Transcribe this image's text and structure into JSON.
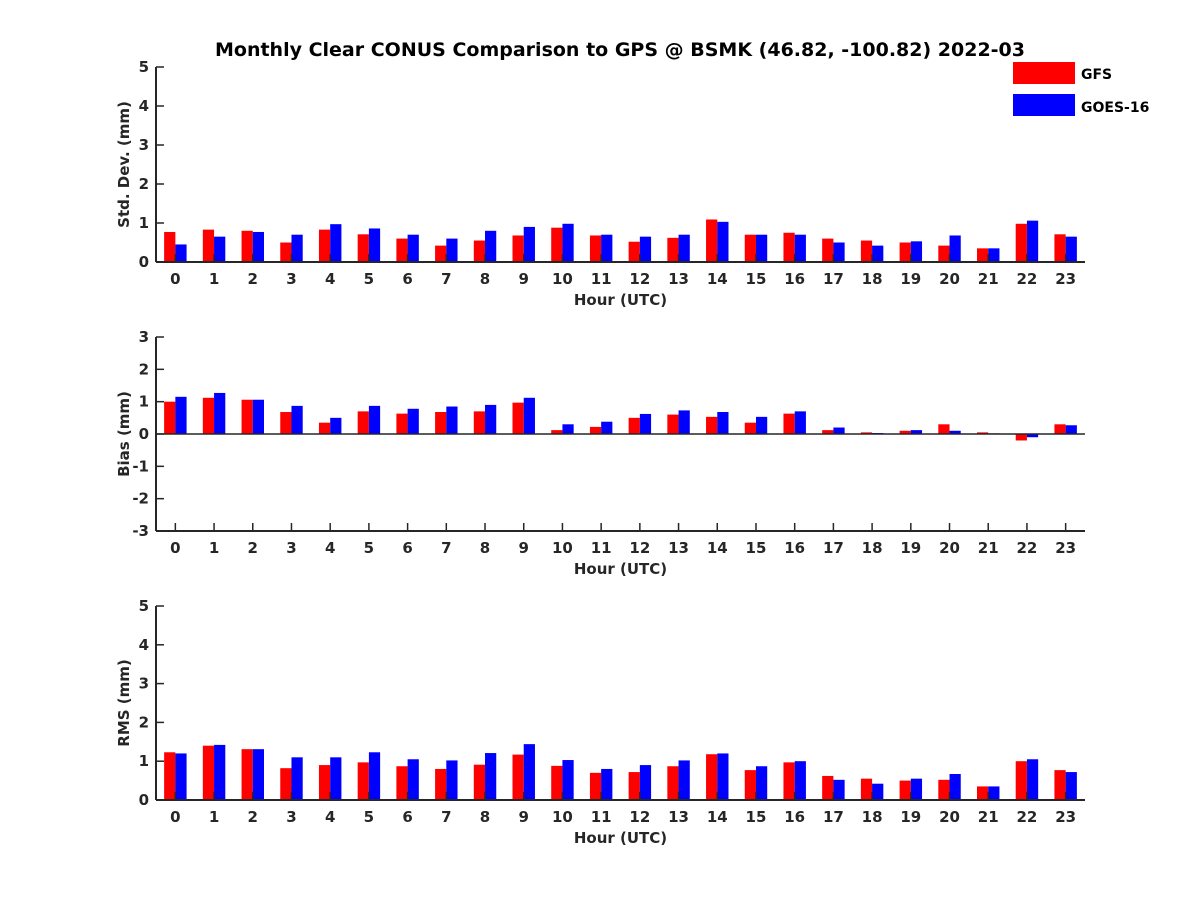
{
  "title": "Monthly Clear CONUS Comparison to GPS @ BSMK (46.82, -100.82) 2022-03",
  "legend": [
    {
      "name": "GFS",
      "color": "#ff0000"
    },
    {
      "name": "GOES-16",
      "color": "#0000ff"
    }
  ],
  "chart_data": [
    {
      "type": "bar",
      "ylabel": "Std. Dev. (mm)",
      "xlabel": "Hour (UTC)",
      "ylim": [
        0,
        5
      ],
      "yticks": [
        0,
        1,
        2,
        3,
        4,
        5
      ],
      "categories": [
        "0",
        "1",
        "2",
        "3",
        "4",
        "5",
        "6",
        "7",
        "8",
        "9",
        "10",
        "11",
        "12",
        "13",
        "14",
        "15",
        "16",
        "17",
        "18",
        "19",
        "20",
        "21",
        "22",
        "23"
      ],
      "series": [
        {
          "name": "GFS",
          "values": [
            0.77,
            0.83,
            0.8,
            0.5,
            0.83,
            0.71,
            0.6,
            0.42,
            0.55,
            0.68,
            0.88,
            0.68,
            0.52,
            0.62,
            1.09,
            0.7,
            0.75,
            0.6,
            0.55,
            0.5,
            0.42,
            0.35,
            0.98,
            0.71
          ]
        },
        {
          "name": "GOES-16",
          "values": [
            0.45,
            0.65,
            0.77,
            0.7,
            0.97,
            0.86,
            0.7,
            0.6,
            0.8,
            0.9,
            0.98,
            0.7,
            0.65,
            0.7,
            1.03,
            0.7,
            0.7,
            0.5,
            0.42,
            0.53,
            0.68,
            0.35,
            1.06,
            0.65
          ]
        }
      ]
    },
    {
      "type": "bar",
      "ylabel": "Bias (mm)",
      "xlabel": "Hour (UTC)",
      "ylim": [
        -3,
        3
      ],
      "yticks": [
        -3,
        -2,
        -1,
        0,
        1,
        2,
        3
      ],
      "categories": [
        "0",
        "1",
        "2",
        "3",
        "4",
        "5",
        "6",
        "7",
        "8",
        "9",
        "10",
        "11",
        "12",
        "13",
        "14",
        "15",
        "16",
        "17",
        "18",
        "19",
        "20",
        "21",
        "22",
        "23"
      ],
      "series": [
        {
          "name": "GFS",
          "values": [
            1.0,
            1.12,
            1.06,
            0.68,
            0.35,
            0.7,
            0.63,
            0.68,
            0.7,
            0.97,
            0.12,
            0.22,
            0.5,
            0.6,
            0.53,
            0.35,
            0.63,
            0.12,
            0.05,
            0.1,
            0.3,
            0.05,
            -0.2,
            0.3
          ]
        },
        {
          "name": "GOES-16",
          "values": [
            1.15,
            1.27,
            1.06,
            0.87,
            0.5,
            0.87,
            0.78,
            0.85,
            0.9,
            1.12,
            0.3,
            0.38,
            0.62,
            0.73,
            0.68,
            0.53,
            0.7,
            0.2,
            0.03,
            0.12,
            0.1,
            0.02,
            -0.1,
            0.27
          ]
        }
      ]
    },
    {
      "type": "bar",
      "ylabel": "RMS (mm)",
      "xlabel": "Hour (UTC)",
      "ylim": [
        0,
        5
      ],
      "yticks": [
        0,
        1,
        2,
        3,
        4,
        5
      ],
      "categories": [
        "0",
        "1",
        "2",
        "3",
        "4",
        "5",
        "6",
        "7",
        "8",
        "9",
        "10",
        "11",
        "12",
        "13",
        "14",
        "15",
        "16",
        "17",
        "18",
        "19",
        "20",
        "21",
        "22",
        "23"
      ],
      "series": [
        {
          "name": "GFS",
          "values": [
            1.23,
            1.4,
            1.31,
            0.82,
            0.9,
            0.97,
            0.87,
            0.8,
            0.91,
            1.17,
            0.88,
            0.7,
            0.72,
            0.87,
            1.18,
            0.77,
            0.97,
            0.62,
            0.55,
            0.5,
            0.52,
            0.35,
            1.0,
            0.77
          ]
        },
        {
          "name": "GOES-16",
          "values": [
            1.2,
            1.42,
            1.31,
            1.1,
            1.1,
            1.23,
            1.05,
            1.02,
            1.21,
            1.44,
            1.03,
            0.8,
            0.9,
            1.02,
            1.2,
            0.87,
            1.0,
            0.52,
            0.42,
            0.55,
            0.67,
            0.35,
            1.05,
            0.72
          ]
        }
      ]
    }
  ]
}
